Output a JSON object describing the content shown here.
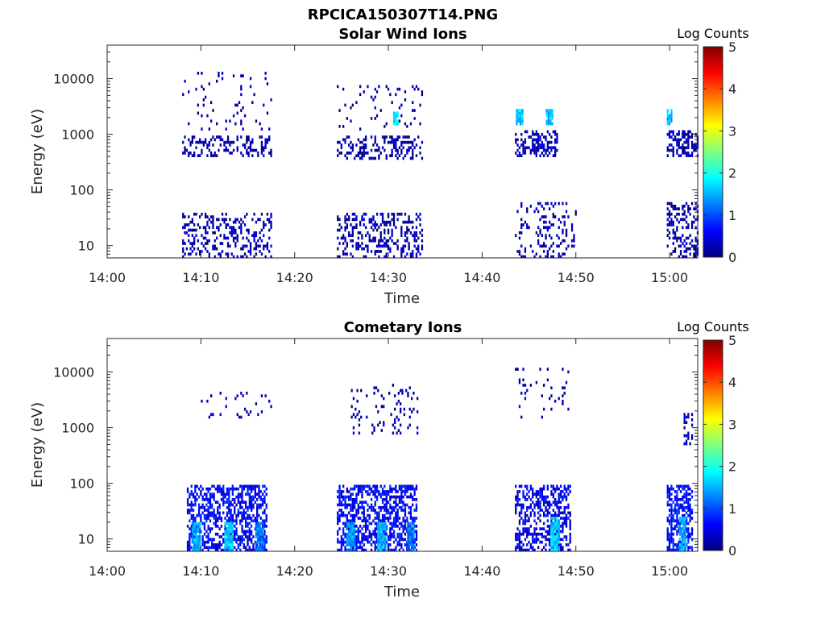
{
  "figure_title": "RPCICA150307T14.PNG",
  "colors": {
    "background": "#ffffff",
    "axis": "#262626",
    "colormap": [
      "#00007f",
      "#0000ff",
      "#007fff",
      "#00ffff",
      "#7fff7f",
      "#ffff00",
      "#ff7f00",
      "#ff0000",
      "#7f0000"
    ]
  },
  "chart_data": [
    {
      "type": "heatmap",
      "title": "Solar Wind Ions",
      "xlabel": "Time",
      "ylabel": "Energy (eV)",
      "x_unit": "minutes after 14:00",
      "xlim": [
        0,
        63
      ],
      "ylim": [
        6,
        40000
      ],
      "y_scale": "log",
      "x_tick_labels": [
        "14:00",
        "14:10",
        "14:20",
        "14:30",
        "14:40",
        "14:50",
        "15:00"
      ],
      "x_tick_values": [
        0,
        10,
        20,
        30,
        40,
        50,
        60
      ],
      "y_tick_labels": [
        "10",
        "100",
        "1000",
        "10000"
      ],
      "y_tick_values": [
        10,
        100,
        1000,
        10000
      ],
      "colorbar": {
        "label": "Log Counts",
        "range": [
          0,
          5
        ],
        "tick_labels": [
          "0",
          "1",
          "2",
          "3",
          "4",
          "5"
        ]
      },
      "observation_intervals": [
        [
          7.8,
          17.8
        ],
        [
          24.2,
          33.6
        ],
        [
          43.5,
          50.0
        ],
        [
          59.6,
          63.0
        ]
      ],
      "clusters": [
        {
          "t0": 8.0,
          "t1": 17.5,
          "e0": 400,
          "e1": 900,
          "level": 0.2,
          "density": 0.35
        },
        {
          "t0": 8.0,
          "t1": 17.5,
          "e0": 1200,
          "e1": 14000,
          "level": 0.15,
          "density": 0.05
        },
        {
          "t0": 8.0,
          "t1": 17.5,
          "e0": 6,
          "e1": 40,
          "level": 0.2,
          "density": 0.3
        },
        {
          "t0": 24.5,
          "t1": 33.5,
          "e0": 350,
          "e1": 900,
          "level": 0.2,
          "density": 0.35
        },
        {
          "t0": 24.5,
          "t1": 33.5,
          "e0": 6,
          "e1": 40,
          "level": 0.2,
          "density": 0.3
        },
        {
          "t0": 24.5,
          "t1": 33.5,
          "e0": 1200,
          "e1": 8000,
          "level": 0.15,
          "density": 0.06
        },
        {
          "t0": 30.5,
          "t1": 31.0,
          "e0": 1500,
          "e1": 2500,
          "level": 1.7,
          "density": 0.9
        },
        {
          "t0": 43.5,
          "t1": 48.0,
          "e0": 400,
          "e1": 1200,
          "level": 0.25,
          "density": 0.45
        },
        {
          "t0": 43.6,
          "t1": 44.3,
          "e0": 1500,
          "e1": 3000,
          "level": 1.6,
          "density": 0.9
        },
        {
          "t0": 46.8,
          "t1": 47.5,
          "e0": 1500,
          "e1": 3000,
          "level": 1.6,
          "density": 0.9
        },
        {
          "t0": 43.5,
          "t1": 50.0,
          "e0": 6,
          "e1": 60,
          "level": 0.2,
          "density": 0.2
        },
        {
          "t0": 59.7,
          "t1": 63.0,
          "e0": 400,
          "e1": 1200,
          "level": 0.25,
          "density": 0.4
        },
        {
          "t0": 59.7,
          "t1": 60.2,
          "e0": 1500,
          "e1": 3000,
          "level": 1.6,
          "density": 0.9
        },
        {
          "t0": 59.7,
          "t1": 63.0,
          "e0": 6,
          "e1": 60,
          "level": 0.2,
          "density": 0.35
        }
      ]
    },
    {
      "type": "heatmap",
      "title": "Cometary Ions",
      "xlabel": "Time",
      "ylabel": "Energy (eV)",
      "x_unit": "minutes after 14:00",
      "xlim": [
        0,
        63
      ],
      "ylim": [
        6,
        40000
      ],
      "y_scale": "log",
      "x_tick_labels": [
        "14:00",
        "14:10",
        "14:20",
        "14:30",
        "14:40",
        "14:50",
        "15:00"
      ],
      "x_tick_values": [
        0,
        10,
        20,
        30,
        40,
        50,
        60
      ],
      "y_tick_labels": [
        "10",
        "100",
        "1000",
        "10000"
      ],
      "y_tick_values": [
        10,
        100,
        1000,
        10000
      ],
      "colorbar": {
        "label": "Log Counts",
        "range": [
          0,
          5
        ],
        "tick_labels": [
          "0",
          "1",
          "2",
          "3",
          "4",
          "5"
        ]
      },
      "observation_intervals": [
        [
          7.8,
          17.8
        ],
        [
          24.2,
          33.6
        ],
        [
          43.5,
          50.0
        ],
        [
          59.6,
          63.0
        ]
      ],
      "clusters": [
        {
          "t0": 8.5,
          "t1": 17.0,
          "e0": 6,
          "e1": 90,
          "level": 0.6,
          "density": 0.55
        },
        {
          "t0": 9.0,
          "t1": 9.8,
          "e0": 6,
          "e1": 20,
          "level": 1.4,
          "density": 0.9
        },
        {
          "t0": 12.5,
          "t1": 13.3,
          "e0": 6,
          "e1": 20,
          "level": 1.6,
          "density": 0.9
        },
        {
          "t0": 15.8,
          "t1": 16.6,
          "e0": 6,
          "e1": 20,
          "level": 1.2,
          "density": 0.9
        },
        {
          "t0": 10.0,
          "t1": 17.5,
          "e0": 1500,
          "e1": 5000,
          "level": 0.15,
          "density": 0.06
        },
        {
          "t0": 24.5,
          "t1": 33.0,
          "e0": 6,
          "e1": 90,
          "level": 0.6,
          "density": 0.55
        },
        {
          "t0": 25.5,
          "t1": 26.3,
          "e0": 6,
          "e1": 20,
          "level": 1.4,
          "density": 0.9
        },
        {
          "t0": 28.8,
          "t1": 29.6,
          "e0": 6,
          "e1": 20,
          "level": 1.5,
          "density": 0.9
        },
        {
          "t0": 32.0,
          "t1": 32.8,
          "e0": 6,
          "e1": 20,
          "level": 1.2,
          "density": 0.9
        },
        {
          "t0": 26.0,
          "t1": 33.0,
          "e0": 800,
          "e1": 6000,
          "level": 0.2,
          "density": 0.12
        },
        {
          "t0": 43.5,
          "t1": 49.5,
          "e0": 6,
          "e1": 90,
          "level": 0.5,
          "density": 0.5
        },
        {
          "t0": 47.3,
          "t1": 48.2,
          "e0": 6,
          "e1": 25,
          "level": 1.6,
          "density": 0.9
        },
        {
          "t0": 43.5,
          "t1": 49.5,
          "e0": 1500,
          "e1": 12000,
          "level": 0.15,
          "density": 0.05
        },
        {
          "t0": 59.7,
          "t1": 62.5,
          "e0": 6,
          "e1": 90,
          "level": 0.7,
          "density": 0.6
        },
        {
          "t0": 61.0,
          "t1": 61.8,
          "e0": 6,
          "e1": 25,
          "level": 1.5,
          "density": 0.9
        },
        {
          "t0": 61.5,
          "t1": 62.5,
          "e0": 500,
          "e1": 1800,
          "level": 0.3,
          "density": 0.4
        }
      ]
    }
  ]
}
